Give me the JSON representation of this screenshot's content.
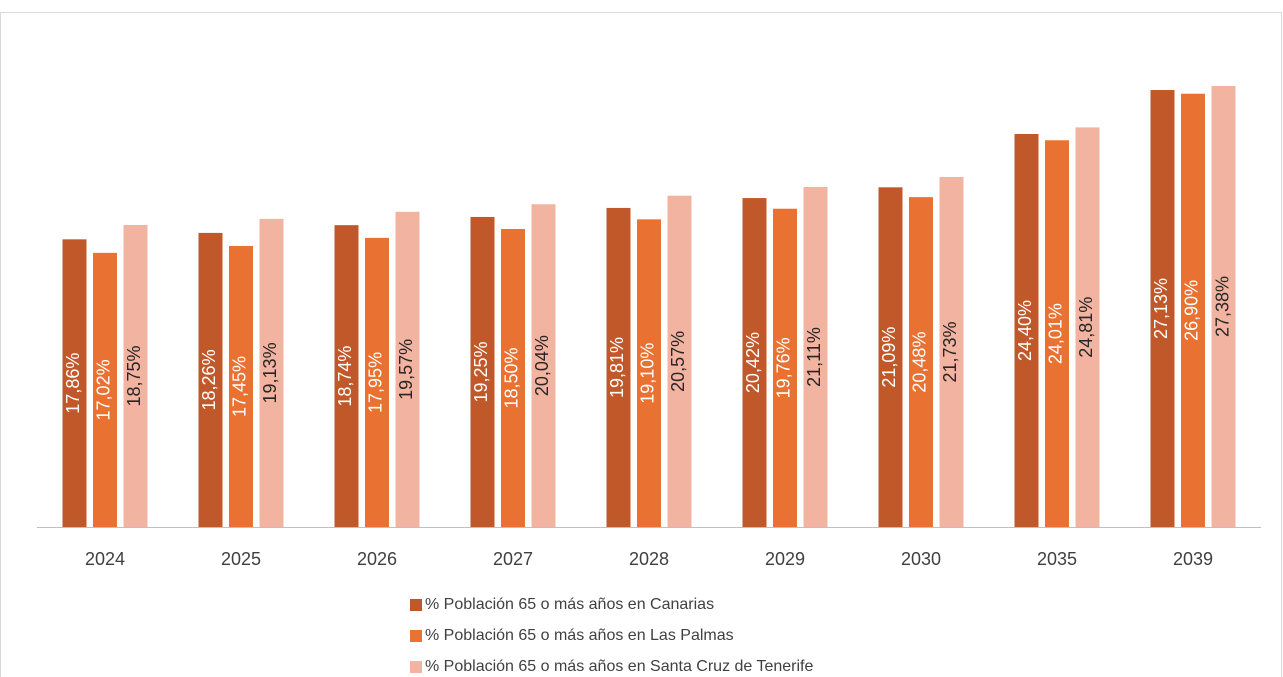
{
  "chart_data": {
    "type": "bar",
    "categories": [
      "2024",
      "2025",
      "2026",
      "2027",
      "2028",
      "2029",
      "2030",
      "2035",
      "2039"
    ],
    "series": [
      {
        "name": "% Población 65 o más años en Canarias",
        "color": "#c0582a",
        "values": [
          17.86,
          18.26,
          18.74,
          19.25,
          19.81,
          20.42,
          21.09,
          24.4,
          27.13
        ],
        "value_labels": [
          "17,86%",
          "18,26%",
          "18,74%",
          "19,25%",
          "19,81%",
          "20,42%",
          "21,09%",
          "24,40%",
          "27,13%"
        ]
      },
      {
        "name": "% Población 65 o más años en Las Palmas",
        "color": "#e97132",
        "values": [
          17.02,
          17.45,
          17.95,
          18.5,
          19.1,
          19.76,
          20.48,
          24.01,
          26.9
        ],
        "value_labels": [
          "17,02%",
          "17,45%",
          "17,95%",
          "18,50%",
          "19,10%",
          "19,76%",
          "20,48%",
          "24,01%",
          "26,90%"
        ]
      },
      {
        "name": "% Población 65 o más años en Santa Cruz de Tenerife",
        "color": "#f2b3a0",
        "values": [
          18.75,
          19.13,
          19.57,
          20.04,
          20.57,
          21.11,
          21.73,
          24.81,
          27.38
        ],
        "value_labels": [
          "18,75%",
          "19,13%",
          "19,57%",
          "20,04%",
          "20,57%",
          "21,11%",
          "21,73%",
          "24,81%",
          "27,38%"
        ]
      }
    ]
  }
}
